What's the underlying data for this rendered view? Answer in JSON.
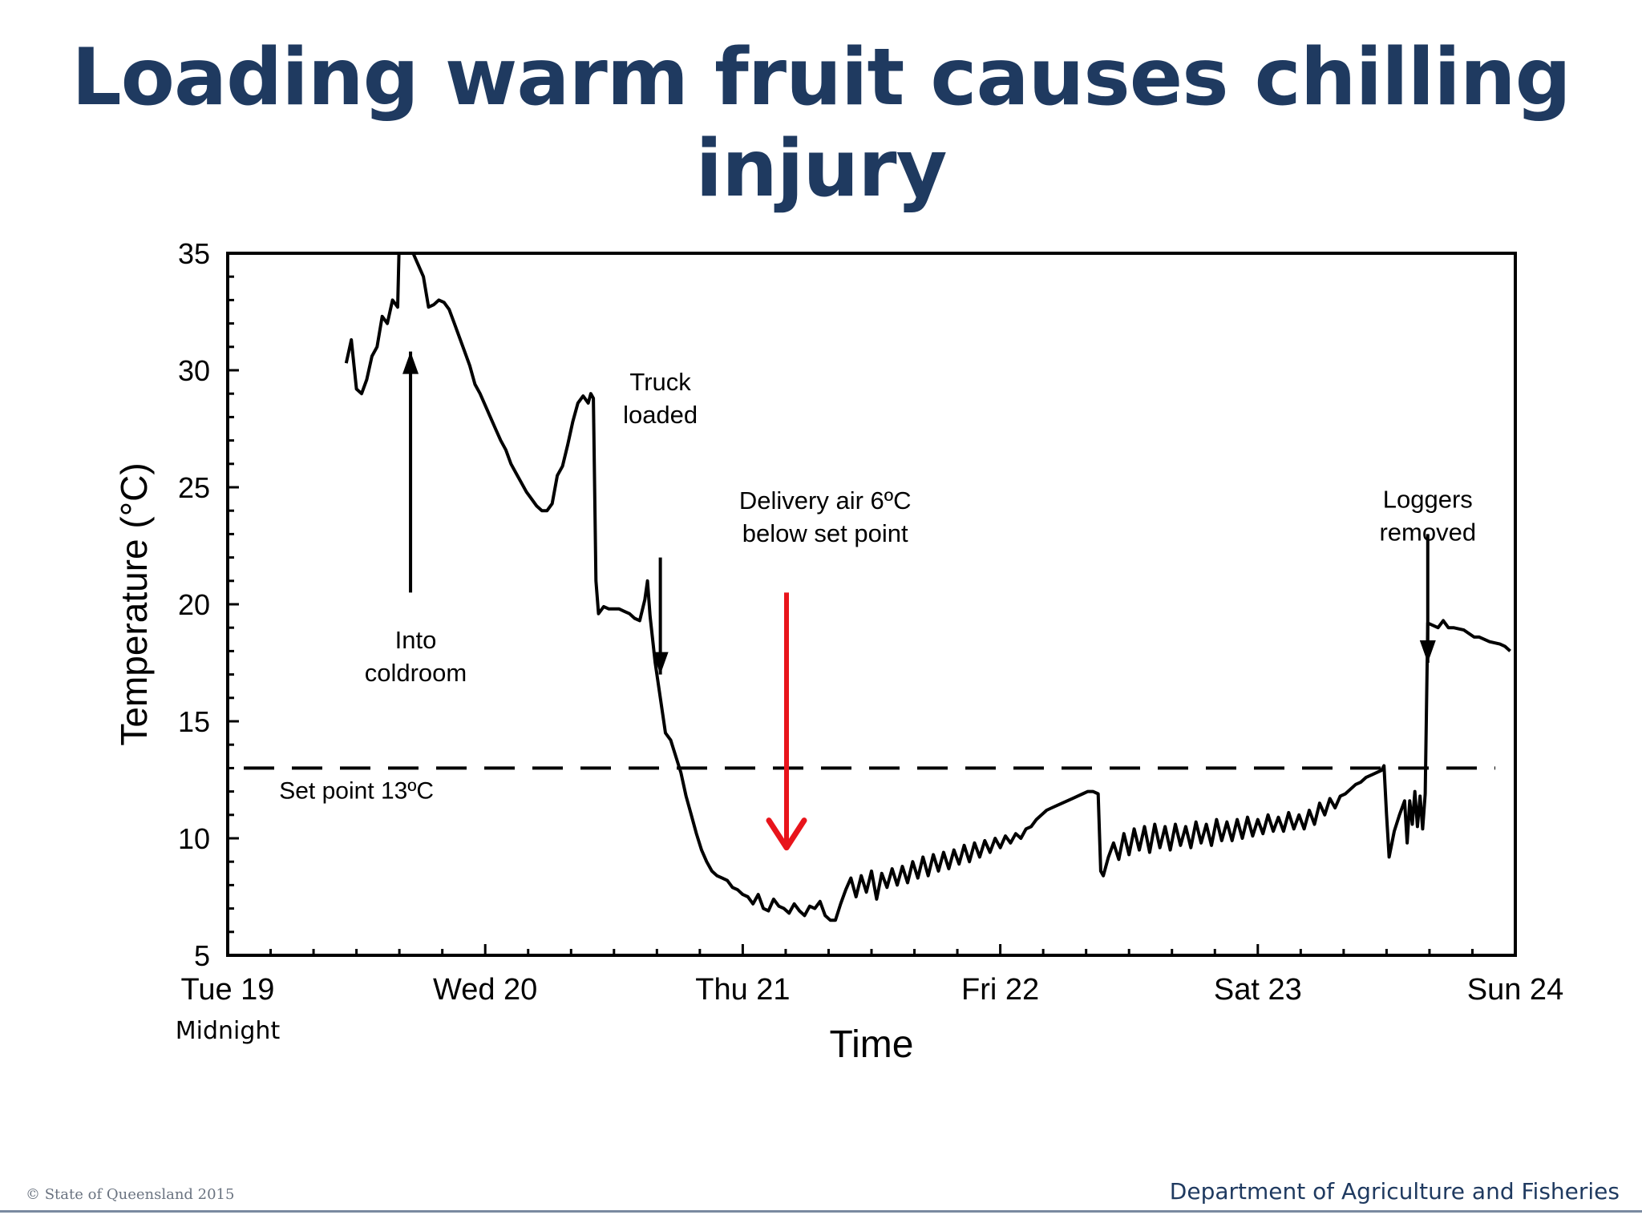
{
  "slide": {
    "title": "Loading warm fruit causes chilling injury",
    "footer_left": "© State of Queensland 2015",
    "footer_right": "Department of Agriculture and Fisheries"
  },
  "chart_data": {
    "type": "line",
    "title": "",
    "xlabel": "Time",
    "ylabel": "Temperature (°C)",
    "ylim": [
      5,
      35
    ],
    "yticks": [
      5,
      10,
      15,
      20,
      25,
      30,
      35
    ],
    "xlim_days": [
      0,
      5
    ],
    "xticks": [
      {
        "day": 0,
        "label": "Tue 19",
        "sublabel": "Midnight"
      },
      {
        "day": 1,
        "label": "Wed 20",
        "sublabel": ""
      },
      {
        "day": 2,
        "label": "Thu 21",
        "sublabel": ""
      },
      {
        "day": 3,
        "label": "Fri 22",
        "sublabel": ""
      },
      {
        "day": 4,
        "label": "Sat 23",
        "sublabel": ""
      },
      {
        "day": 5,
        "label": "Sun 24",
        "sublabel": ""
      }
    ],
    "grid": false,
    "series": [
      {
        "color": "#000000",
        "points": [
          [
            0.46,
            30.3
          ],
          [
            0.48,
            31.3
          ],
          [
            0.5,
            29.2
          ],
          [
            0.52,
            29.0
          ],
          [
            0.54,
            29.6
          ],
          [
            0.56,
            30.6
          ],
          [
            0.58,
            31.0
          ],
          [
            0.6,
            32.3
          ],
          [
            0.62,
            32.0
          ],
          [
            0.64,
            33.0
          ],
          [
            0.66,
            32.7
          ],
          [
            0.665,
            35.0
          ],
          [
            0.68,
            35.0
          ],
          [
            0.72,
            35.0
          ],
          [
            0.74,
            34.5
          ],
          [
            0.76,
            34.0
          ],
          [
            0.78,
            32.7
          ],
          [
            0.8,
            32.8
          ],
          [
            0.82,
            33.0
          ],
          [
            0.84,
            32.9
          ],
          [
            0.86,
            32.6
          ],
          [
            0.88,
            32.0
          ],
          [
            0.9,
            31.4
          ],
          [
            0.92,
            30.8
          ],
          [
            0.94,
            30.2
          ],
          [
            0.96,
            29.4
          ],
          [
            0.98,
            29.0
          ],
          [
            1.0,
            28.5
          ],
          [
            1.02,
            28.0
          ],
          [
            1.04,
            27.5
          ],
          [
            1.06,
            27.0
          ],
          [
            1.08,
            26.6
          ],
          [
            1.1,
            26.0
          ],
          [
            1.12,
            25.6
          ],
          [
            1.14,
            25.2
          ],
          [
            1.16,
            24.8
          ],
          [
            1.18,
            24.5
          ],
          [
            1.2,
            24.2
          ],
          [
            1.22,
            24.0
          ],
          [
            1.24,
            24.0
          ],
          [
            1.26,
            24.3
          ],
          [
            1.28,
            25.5
          ],
          [
            1.3,
            25.9
          ],
          [
            1.32,
            26.8
          ],
          [
            1.34,
            27.8
          ],
          [
            1.36,
            28.6
          ],
          [
            1.38,
            28.9
          ],
          [
            1.4,
            28.6
          ],
          [
            1.41,
            29.0
          ],
          [
            1.42,
            28.8
          ],
          [
            1.43,
            21.0
          ],
          [
            1.44,
            19.6
          ],
          [
            1.46,
            19.9
          ],
          [
            1.48,
            19.8
          ],
          [
            1.5,
            19.8
          ],
          [
            1.52,
            19.8
          ],
          [
            1.54,
            19.7
          ],
          [
            1.56,
            19.6
          ],
          [
            1.58,
            19.4
          ],
          [
            1.6,
            19.3
          ],
          [
            1.62,
            20.2
          ],
          [
            1.63,
            21.0
          ],
          [
            1.64,
            19.5
          ],
          [
            1.66,
            17.5
          ],
          [
            1.68,
            16.0
          ],
          [
            1.7,
            14.5
          ],
          [
            1.72,
            14.2
          ],
          [
            1.74,
            13.5
          ],
          [
            1.76,
            12.8
          ],
          [
            1.78,
            11.8
          ],
          [
            1.8,
            11.0
          ],
          [
            1.82,
            10.2
          ],
          [
            1.84,
            9.5
          ],
          [
            1.86,
            9.0
          ],
          [
            1.88,
            8.6
          ],
          [
            1.9,
            8.4
          ],
          [
            1.92,
            8.3
          ],
          [
            1.94,
            8.2
          ],
          [
            1.96,
            7.9
          ],
          [
            1.98,
            7.8
          ],
          [
            2.0,
            7.6
          ],
          [
            2.02,
            7.5
          ],
          [
            2.04,
            7.2
          ],
          [
            2.06,
            7.6
          ],
          [
            2.08,
            7.0
          ],
          [
            2.1,
            6.9
          ],
          [
            2.12,
            7.4
          ],
          [
            2.14,
            7.1
          ],
          [
            2.16,
            7.0
          ],
          [
            2.18,
            6.8
          ],
          [
            2.2,
            7.2
          ],
          [
            2.22,
            6.9
          ],
          [
            2.24,
            6.7
          ],
          [
            2.26,
            7.1
          ],
          [
            2.28,
            7.0
          ],
          [
            2.3,
            7.3
          ],
          [
            2.32,
            6.7
          ],
          [
            2.34,
            6.5
          ],
          [
            2.36,
            6.5
          ],
          [
            2.38,
            7.2
          ],
          [
            2.4,
            7.8
          ],
          [
            2.42,
            8.3
          ],
          [
            2.44,
            7.5
          ],
          [
            2.46,
            8.4
          ],
          [
            2.48,
            7.7
          ],
          [
            2.5,
            8.6
          ],
          [
            2.52,
            7.4
          ],
          [
            2.54,
            8.5
          ],
          [
            2.56,
            7.9
          ],
          [
            2.58,
            8.7
          ],
          [
            2.6,
            8.0
          ],
          [
            2.62,
            8.8
          ],
          [
            2.64,
            8.1
          ],
          [
            2.66,
            9.0
          ],
          [
            2.68,
            8.3
          ],
          [
            2.7,
            9.2
          ],
          [
            2.72,
            8.4
          ],
          [
            2.74,
            9.3
          ],
          [
            2.76,
            8.6
          ],
          [
            2.78,
            9.4
          ],
          [
            2.8,
            8.7
          ],
          [
            2.82,
            9.5
          ],
          [
            2.84,
            8.9
          ],
          [
            2.86,
            9.7
          ],
          [
            2.88,
            9.0
          ],
          [
            2.9,
            9.8
          ],
          [
            2.92,
            9.2
          ],
          [
            2.94,
            9.9
          ],
          [
            2.96,
            9.4
          ],
          [
            2.98,
            10.0
          ],
          [
            3.0,
            9.6
          ],
          [
            3.02,
            10.1
          ],
          [
            3.04,
            9.8
          ],
          [
            3.06,
            10.2
          ],
          [
            3.08,
            10.0
          ],
          [
            3.1,
            10.4
          ],
          [
            3.12,
            10.5
          ],
          [
            3.14,
            10.8
          ],
          [
            3.16,
            11.0
          ],
          [
            3.18,
            11.2
          ],
          [
            3.2,
            11.3
          ],
          [
            3.22,
            11.4
          ],
          [
            3.24,
            11.5
          ],
          [
            3.26,
            11.6
          ],
          [
            3.28,
            11.7
          ],
          [
            3.3,
            11.8
          ],
          [
            3.32,
            11.9
          ],
          [
            3.34,
            12.0
          ],
          [
            3.36,
            12.0
          ],
          [
            3.38,
            11.9
          ],
          [
            3.39,
            8.6
          ],
          [
            3.4,
            8.4
          ],
          [
            3.42,
            9.2
          ],
          [
            3.44,
            9.8
          ],
          [
            3.46,
            9.1
          ],
          [
            3.48,
            10.2
          ],
          [
            3.5,
            9.3
          ],
          [
            3.52,
            10.4
          ],
          [
            3.54,
            9.5
          ],
          [
            3.56,
            10.5
          ],
          [
            3.58,
            9.4
          ],
          [
            3.6,
            10.6
          ],
          [
            3.62,
            9.6
          ],
          [
            3.64,
            10.5
          ],
          [
            3.66,
            9.5
          ],
          [
            3.68,
            10.6
          ],
          [
            3.7,
            9.7
          ],
          [
            3.72,
            10.5
          ],
          [
            3.74,
            9.6
          ],
          [
            3.76,
            10.7
          ],
          [
            3.78,
            9.8
          ],
          [
            3.8,
            10.6
          ],
          [
            3.82,
            9.7
          ],
          [
            3.84,
            10.8
          ],
          [
            3.86,
            9.9
          ],
          [
            3.88,
            10.7
          ],
          [
            3.9,
            9.9
          ],
          [
            3.92,
            10.8
          ],
          [
            3.94,
            10.0
          ],
          [
            3.96,
            10.9
          ],
          [
            3.98,
            10.1
          ],
          [
            4.0,
            10.8
          ],
          [
            4.02,
            10.2
          ],
          [
            4.04,
            11.0
          ],
          [
            4.06,
            10.3
          ],
          [
            4.08,
            10.9
          ],
          [
            4.1,
            10.3
          ],
          [
            4.12,
            11.1
          ],
          [
            4.14,
            10.4
          ],
          [
            4.16,
            11.0
          ],
          [
            4.18,
            10.4
          ],
          [
            4.2,
            11.2
          ],
          [
            4.22,
            10.6
          ],
          [
            4.24,
            11.5
          ],
          [
            4.26,
            11.0
          ],
          [
            4.28,
            11.7
          ],
          [
            4.3,
            11.3
          ],
          [
            4.32,
            11.8
          ],
          [
            4.34,
            11.9
          ],
          [
            4.36,
            12.1
          ],
          [
            4.38,
            12.3
          ],
          [
            4.4,
            12.4
          ],
          [
            4.42,
            12.6
          ],
          [
            4.44,
            12.7
          ],
          [
            4.46,
            12.8
          ],
          [
            4.48,
            12.9
          ],
          [
            4.49,
            13.1
          ],
          [
            4.5,
            11.0
          ],
          [
            4.51,
            9.2
          ],
          [
            4.53,
            10.3
          ],
          [
            4.55,
            11.0
          ],
          [
            4.57,
            11.6
          ],
          [
            4.58,
            9.8
          ],
          [
            4.59,
            11.6
          ],
          [
            4.6,
            10.6
          ],
          [
            4.61,
            12.0
          ],
          [
            4.62,
            10.5
          ],
          [
            4.63,
            11.8
          ],
          [
            4.64,
            10.4
          ],
          [
            4.65,
            11.9
          ],
          [
            4.66,
            19.2
          ],
          [
            4.68,
            19.1
          ],
          [
            4.7,
            19.0
          ],
          [
            4.72,
            19.3
          ],
          [
            4.74,
            19.0
          ],
          [
            4.76,
            19.0
          ],
          [
            4.8,
            18.9
          ],
          [
            4.84,
            18.6
          ],
          [
            4.86,
            18.6
          ],
          [
            4.9,
            18.4
          ],
          [
            4.94,
            18.3
          ],
          [
            4.96,
            18.2
          ],
          [
            4.98,
            18.0
          ]
        ]
      }
    ],
    "reference_lines": [
      {
        "y": 13,
        "style": "dashed",
        "label": "Set point 13ºC"
      }
    ],
    "annotations": [
      {
        "lines": [
          "Into",
          "coldroom"
        ],
        "arrow": "up",
        "day": 0.71,
        "arrow_from_y": 20.5,
        "arrow_to_y": 30.8,
        "color": "#000000"
      },
      {
        "lines": [
          "Truck",
          "loaded"
        ],
        "arrow": "down",
        "day": 1.68,
        "arrow_from_y": 22.0,
        "arrow_to_y": 17.0,
        "color": "#000000"
      },
      {
        "lines": [
          "Delivery air 6ºC",
          "below set point"
        ],
        "arrow": "none",
        "day": 2.32,
        "color": "#000000"
      },
      {
        "lines": [],
        "arrow": "down",
        "day": 2.17,
        "arrow_from_y": 20.5,
        "arrow_to_y": 9.6,
        "color": "#e8141b"
      },
      {
        "lines": [
          "Loggers",
          "removed"
        ],
        "arrow": "down",
        "day": 4.66,
        "arrow_from_y": 23.0,
        "arrow_to_y": 17.5,
        "color": "#000000"
      }
    ]
  }
}
